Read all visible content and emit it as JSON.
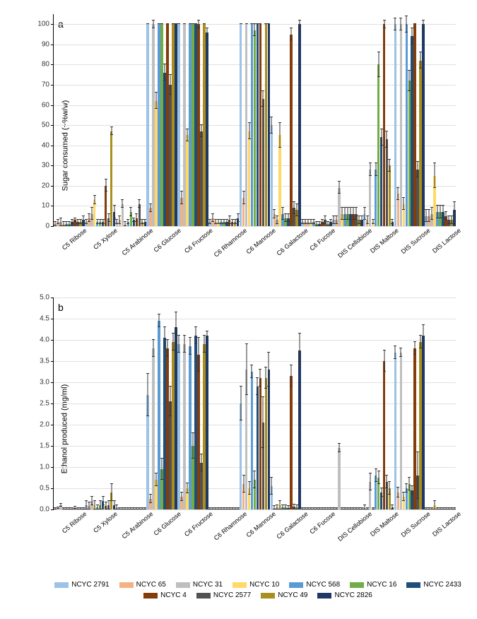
{
  "series": [
    {
      "name": "NCYC 2791",
      "color": "#9cc2e5"
    },
    {
      "name": "NCYC 65",
      "color": "#f4b183"
    },
    {
      "name": "NCYC 31",
      "color": "#bfbfbf"
    },
    {
      "name": "NCYC 10",
      "color": "#ffd966"
    },
    {
      "name": "NCYC 568",
      "color": "#5b9bd5"
    },
    {
      "name": "NCYC 16",
      "color": "#70ad47"
    },
    {
      "name": "NCYC 2433",
      "color": "#1f4e79"
    },
    {
      "name": "NCYC 4",
      "color": "#843c0b"
    },
    {
      "name": "NCYC 2577",
      "color": "#525252"
    },
    {
      "name": "NCYC 49",
      "color": "#a98f1d"
    },
    {
      "name": "NCYC 2826",
      "color": "#1f3864"
    }
  ],
  "categories": [
    "C5 Ribose",
    "C5 Xylose",
    "C5 Arabinose",
    "C6 Glucose",
    "C6 Fructose",
    "C6 Rhamnose",
    "C6 Mannose",
    "C6 Galactose",
    "C6 Fucose",
    "DIS Cellobiose",
    "DIS Maltose",
    "DIS Sucrose",
    "DIS Lactose"
  ],
  "panel_a": {
    "letter": "a",
    "ylabel": "Sugar consumed (~%w/w)",
    "ylim_max": 105,
    "ytick_step": 10,
    "ytick_max": 100,
    "data": [
      {
        "v": [
          1,
          2,
          2,
          1,
          1,
          1,
          2,
          3,
          2,
          2,
          3
        ],
        "e": [
          1,
          1,
          2,
          1,
          1,
          1,
          1,
          1,
          1,
          1,
          2
        ]
      },
      {
        "v": [
          2,
          4,
          6,
          13,
          2,
          2,
          2,
          20,
          4,
          47,
          7
        ],
        "e": [
          1,
          2,
          3,
          2,
          1,
          1,
          1,
          3,
          2,
          2,
          3
        ]
      },
      {
        "v": [
          2,
          3,
          11,
          1,
          2,
          7,
          3,
          4,
          11,
          2,
          2
        ],
        "e": [
          1,
          2,
          2,
          1,
          1,
          2,
          1,
          2,
          2,
          1,
          1
        ]
      },
      {
        "v": [
          100,
          9,
          100,
          62,
          100,
          100,
          76,
          100,
          70,
          100,
          100
        ],
        "e": [
          0,
          2,
          2,
          4,
          0,
          0,
          4,
          0,
          5,
          0,
          0
        ]
      },
      {
        "v": [
          100,
          14,
          100,
          45,
          100,
          100,
          100,
          100,
          47,
          100,
          96
        ],
        "e": [
          0,
          3,
          0,
          3,
          0,
          0,
          0,
          2,
          3,
          0,
          2
        ]
      },
      {
        "v": [
          2,
          4,
          2,
          2,
          2,
          2,
          2,
          3,
          2,
          2,
          4
        ],
        "e": [
          1,
          2,
          1,
          1,
          1,
          1,
          1,
          2,
          1,
          1,
          2
        ]
      },
      {
        "v": [
          100,
          14,
          100,
          47,
          100,
          97,
          100,
          100,
          63,
          100,
          100
        ],
        "e": [
          0,
          3,
          0,
          4,
          0,
          3,
          0,
          0,
          4,
          0,
          0
        ]
      },
      {
        "v": [
          50,
          6,
          3,
          45,
          6,
          4,
          4,
          95,
          9,
          8,
          100
        ],
        "e": [
          4,
          2,
          2,
          6,
          3,
          2,
          2,
          3,
          3,
          3,
          2
        ]
      },
      {
        "v": [
          2,
          2,
          2,
          2,
          2,
          1,
          1,
          2,
          3,
          1,
          2
        ],
        "e": [
          1,
          1,
          1,
          1,
          1,
          1,
          1,
          1,
          2,
          1,
          1
        ]
      },
      {
        "v": [
          3,
          3,
          19,
          6,
          6,
          6,
          6,
          6,
          6,
          3,
          3
        ],
        "e": [
          2,
          2,
          3,
          3,
          3,
          3,
          3,
          3,
          3,
          2,
          2
        ]
      },
      {
        "v": [
          6,
          3,
          28,
          2,
          28,
          80,
          44,
          100,
          43,
          30,
          2
        ],
        "e": [
          3,
          2,
          3,
          1,
          3,
          6,
          4,
          2,
          4,
          3,
          1
        ]
      },
      {
        "v": [
          100,
          16,
          100,
          11,
          100,
          72,
          94,
          100,
          28,
          82,
          100
        ],
        "e": [
          3,
          3,
          3,
          3,
          4,
          5,
          4,
          0,
          4,
          4,
          2
        ]
      },
      {
        "v": [
          5,
          5,
          6,
          25,
          7,
          7,
          7,
          5,
          3,
          3,
          8
        ],
        "e": [
          3,
          3,
          3,
          6,
          3,
          3,
          3,
          2,
          2,
          2,
          4
        ]
      }
    ]
  },
  "panel_b": {
    "letter": "b",
    "ylabel": "Ethanol produced (mg/ml)",
    "ylim_max": 5.0,
    "ytick_step": 0.5,
    "ytick_max": 5.0,
    "data": [
      {
        "v": [
          0.02,
          0.03,
          0.1,
          0.02,
          0.02,
          0.02,
          0.02,
          0.04,
          0.02,
          0.02,
          0.02
        ],
        "e": [
          0.02,
          0.02,
          0.04,
          0.02,
          0.02,
          0.02,
          0.02,
          0.03,
          0.02,
          0.02,
          0.02
        ]
      },
      {
        "v": [
          0.1,
          0.08,
          0.2,
          0.1,
          0.05,
          0.1,
          0.2,
          0.08,
          0.1,
          0.4,
          0.1
        ],
        "e": [
          0.1,
          0.08,
          0.1,
          0.1,
          0.05,
          0.1,
          0.1,
          0.08,
          0.1,
          0.2,
          0.1
        ]
      },
      {
        "v": [
          0.05,
          0.02,
          0.02,
          0.02,
          0.02,
          0.02,
          0.02,
          0.02,
          0.02,
          0.02,
          0.02
        ],
        "e": [
          0.05,
          0.02,
          0.02,
          0.02,
          0.02,
          0.02,
          0.02,
          0.02,
          0.02,
          0.02,
          0.02
        ]
      },
      {
        "v": [
          2.7,
          0.25,
          3.8,
          0.7,
          4.45,
          0.95,
          4.05,
          3.8,
          2.55,
          3.95,
          4.3
        ],
        "e": [
          0.5,
          0.1,
          0.2,
          0.15,
          0.15,
          0.25,
          0.25,
          0.2,
          0.35,
          0.2,
          0.35
        ]
      },
      {
        "v": [
          3.9,
          0.3,
          3.9,
          0.5,
          3.85,
          1.5,
          4.1,
          3.65,
          1.1,
          3.9,
          4.1
        ],
        "e": [
          0.2,
          0.1,
          0.2,
          0.12,
          0.2,
          0.3,
          0.2,
          0.4,
          0.2,
          0.2,
          0.1
        ]
      },
      {
        "v": [
          0.02,
          0.02,
          0.02,
          0.02,
          0.02,
          0.02,
          0.02,
          0.02,
          0.02,
          0.02,
          0.02
        ],
        "e": [
          0.02,
          0.02,
          0.02,
          0.02,
          0.02,
          0.02,
          0.02,
          0.02,
          0.02,
          0.02,
          0.02
        ]
      },
      {
        "v": [
          2.5,
          0.6,
          3.3,
          0.5,
          3.25,
          0.7,
          2.9,
          3.1,
          2.05,
          3.1,
          3.3
        ],
        "e": [
          0.4,
          0.2,
          0.6,
          0.15,
          0.15,
          0.2,
          0.2,
          0.2,
          0.6,
          0.25,
          0.4
        ]
      },
      {
        "v": [
          0.55,
          0.04,
          0.05,
          0.1,
          0.05,
          0.05,
          0.04,
          3.15,
          0.06,
          0.05,
          3.75
        ],
        "e": [
          0.2,
          0.04,
          0.05,
          0.1,
          0.05,
          0.05,
          0.04,
          0.25,
          0.06,
          0.05,
          0.4
        ]
      },
      {
        "v": [
          0.02,
          0.02,
          0.02,
          0.02,
          0.02,
          0.02,
          0.02,
          0.02,
          0.02,
          0.02,
          0.02
        ],
        "e": [
          0.02,
          0.02,
          0.02,
          0.02,
          0.02,
          0.02,
          0.02,
          0.02,
          0.02,
          0.02,
          0.02
        ]
      },
      {
        "v": [
          0.02,
          0.02,
          1.45,
          0.02,
          0.02,
          0.02,
          0.02,
          0.02,
          0.02,
          0.02,
          0.02
        ],
        "e": [
          0.02,
          0.02,
          0.1,
          0.02,
          0.02,
          0.02,
          0.02,
          0.02,
          0.02,
          0.02,
          0.02
        ]
      },
      {
        "v": [
          0.05,
          0.02,
          0.65,
          0.02,
          0.8,
          0.75,
          0.4,
          3.5,
          0.65,
          0.5,
          0.05
        ],
        "e": [
          0.05,
          0.02,
          0.2,
          0.02,
          0.15,
          0.15,
          0.1,
          0.25,
          0.15,
          0.15,
          0.05
        ]
      },
      {
        "v": [
          3.7,
          0.4,
          3.7,
          0.3,
          0.5,
          0.6,
          0.45,
          3.8,
          0.8,
          3.95,
          4.1
        ],
        "e": [
          0.15,
          0.12,
          0.1,
          0.1,
          0.1,
          0.15,
          0.1,
          0.15,
          0.55,
          0.15,
          0.25
        ]
      },
      {
        "v": [
          0.02,
          0.02,
          0.02,
          0.1,
          0.02,
          0.02,
          0.02,
          0.02,
          0.02,
          0.02,
          0.02
        ],
        "e": [
          0.02,
          0.02,
          0.02,
          0.1,
          0.02,
          0.02,
          0.02,
          0.02,
          0.02,
          0.02,
          0.02
        ]
      }
    ]
  }
}
